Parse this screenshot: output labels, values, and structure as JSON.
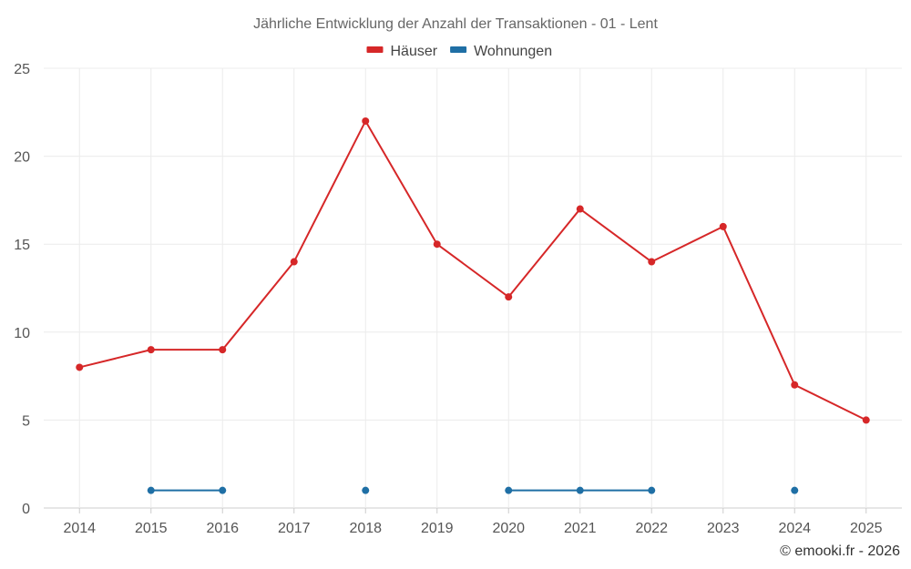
{
  "chart_data": {
    "type": "line",
    "title": "Jährliche Entwicklung der Anzahl der Transaktionen - 01 - Lent",
    "categories": [
      "2014",
      "2015",
      "2016",
      "2017",
      "2018",
      "2019",
      "2020",
      "2021",
      "2022",
      "2023",
      "2024",
      "2025"
    ],
    "ylim": [
      0,
      25
    ],
    "yticks": [
      0,
      5,
      10,
      15,
      20,
      25
    ],
    "grid": true,
    "legend_position": "top-center",
    "series": [
      {
        "name": "Häuser",
        "color": "#d62728",
        "values": [
          8,
          9,
          9,
          14,
          22,
          15,
          12,
          17,
          14,
          16,
          7,
          5
        ]
      },
      {
        "name": "Wohnungen",
        "color": "#1f6fa5",
        "values": [
          null,
          1,
          1,
          null,
          1,
          null,
          1,
          1,
          1,
          null,
          1,
          null
        ]
      }
    ]
  },
  "credit": "© emooki.fr - 2026"
}
